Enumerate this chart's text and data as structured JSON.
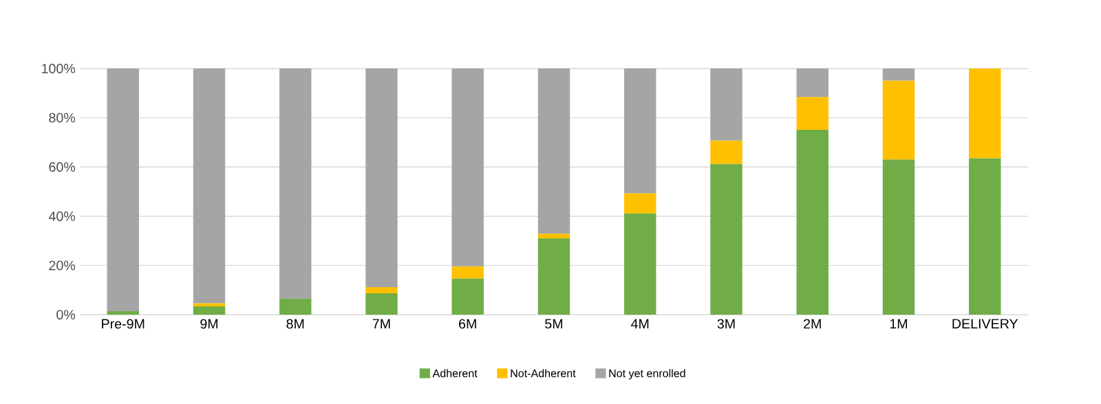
{
  "chart_data": {
    "type": "bar",
    "stacked": true,
    "categories": [
      "Pre-9M",
      "9M",
      "8M",
      "7M",
      "6M",
      "5M",
      "4M",
      "3M",
      "2M",
      "1M",
      "DELIVERY"
    ],
    "series": [
      {
        "name": "Adherent",
        "color": "#70ad47",
        "values": [
          1.4,
          3.4,
          6.5,
          8.7,
          14.7,
          31.0,
          41.1,
          61.2,
          75.1,
          63.0,
          63.5
        ]
      },
      {
        "name": "Not-Adherent",
        "color": "#ffc000",
        "values": [
          0,
          1.2,
          0,
          2.5,
          4.9,
          1.9,
          8.2,
          9.5,
          13.3,
          32.0,
          36.5
        ]
      },
      {
        "name": "Not yet enrolled",
        "color": "#a5a5a5",
        "values": [
          98.6,
          95.4,
          93.5,
          88.8,
          80.4,
          67.1,
          50.7,
          29.3,
          11.6,
          5.0,
          0
        ]
      }
    ],
    "ylim": [
      0,
      100
    ],
    "yticks": [
      {
        "value": 0,
        "label": "0%"
      },
      {
        "value": 20,
        "label": "20%"
      },
      {
        "value": 40,
        "label": "40%"
      },
      {
        "value": 60,
        "label": "60%"
      },
      {
        "value": 80,
        "label": "80%"
      },
      {
        "value": 100,
        "label": "100%"
      }
    ],
    "grid": "y",
    "legend": "bottom"
  }
}
